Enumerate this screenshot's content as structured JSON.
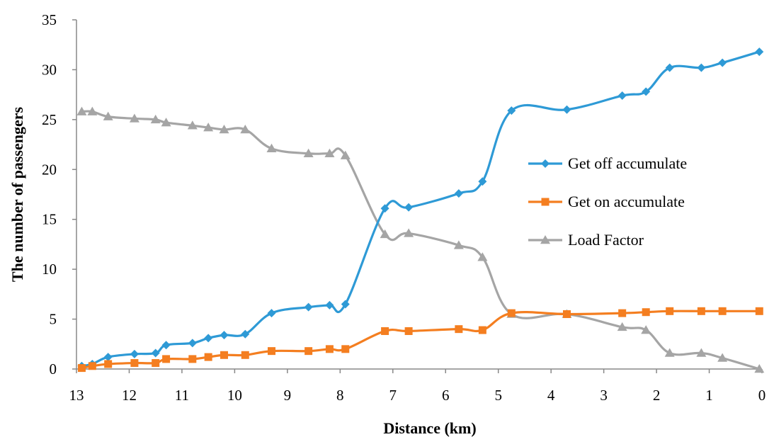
{
  "chart_data": {
    "type": "line",
    "xlabel": "Distance (km)",
    "ylabel": "The number of passengers",
    "xlim": [
      13,
      0
    ],
    "ylim": [
      0,
      35
    ],
    "x_ticks": [
      13,
      12,
      11,
      10,
      9,
      8,
      7,
      6,
      5,
      4,
      3,
      2,
      1,
      0
    ],
    "y_ticks": [
      0,
      5,
      10,
      15,
      20,
      25,
      30,
      35
    ],
    "x_tick_labels": [
      "13",
      "12",
      "11",
      "10",
      "9",
      "8",
      "7",
      "6",
      "5",
      "4",
      "3",
      "2",
      "1",
      "0"
    ],
    "y_tick_labels": [
      "0",
      "5",
      "10",
      "15",
      "20",
      "25",
      "30",
      "35"
    ],
    "grid": false,
    "legend_position": "right",
    "series": [
      {
        "name": "Get off accumulate",
        "color": "#2E9AD6",
        "marker": "diamond",
        "x": [
          12.9,
          12.7,
          12.4,
          11.9,
          11.5,
          11.3,
          10.8,
          10.5,
          10.2,
          9.8,
          9.3,
          8.6,
          8.2,
          7.9,
          7.15,
          6.7,
          5.75,
          5.3,
          4.75,
          3.7,
          2.65,
          2.2,
          1.75,
          1.15,
          0.75,
          0.05
        ],
        "y": [
          0.3,
          0.5,
          1.2,
          1.5,
          1.6,
          2.4,
          2.6,
          3.1,
          3.4,
          3.5,
          5.6,
          6.2,
          6.4,
          6.5,
          16.1,
          16.2,
          17.6,
          18.8,
          25.9,
          26.0,
          27.4,
          27.8,
          30.2,
          30.2,
          30.7,
          31.8
        ]
      },
      {
        "name": "Get on accumulate",
        "color": "#F47E20",
        "marker": "square",
        "x": [
          12.9,
          12.7,
          12.4,
          11.9,
          11.5,
          11.3,
          10.8,
          10.5,
          10.2,
          9.8,
          9.3,
          8.6,
          8.2,
          7.9,
          7.15,
          6.7,
          5.75,
          5.3,
          4.75,
          3.7,
          2.65,
          2.2,
          1.75,
          1.15,
          0.75,
          0.05
        ],
        "y": [
          0.1,
          0.3,
          0.5,
          0.6,
          0.6,
          1.0,
          1.0,
          1.2,
          1.4,
          1.4,
          1.8,
          1.8,
          2.0,
          2.0,
          3.8,
          3.8,
          4.0,
          3.9,
          5.6,
          5.5,
          5.6,
          5.7,
          5.8,
          5.8,
          5.8,
          5.8
        ]
      },
      {
        "name": "Load Factor",
        "color": "#A5A5A5",
        "marker": "triangle",
        "x": [
          12.9,
          12.7,
          12.4,
          11.9,
          11.5,
          11.3,
          10.8,
          10.5,
          10.2,
          9.8,
          9.3,
          8.6,
          8.2,
          7.9,
          7.15,
          6.7,
          5.75,
          5.3,
          4.75,
          3.7,
          2.65,
          2.2,
          1.75,
          1.15,
          0.75,
          0.05
        ],
        "y": [
          25.8,
          25.8,
          25.3,
          25.1,
          25.0,
          24.7,
          24.4,
          24.2,
          24.0,
          24.0,
          22.1,
          21.6,
          21.6,
          21.4,
          13.5,
          13.6,
          12.4,
          11.2,
          5.5,
          5.5,
          4.2,
          3.9,
          1.6,
          1.6,
          1.1,
          0.0
        ]
      }
    ]
  }
}
